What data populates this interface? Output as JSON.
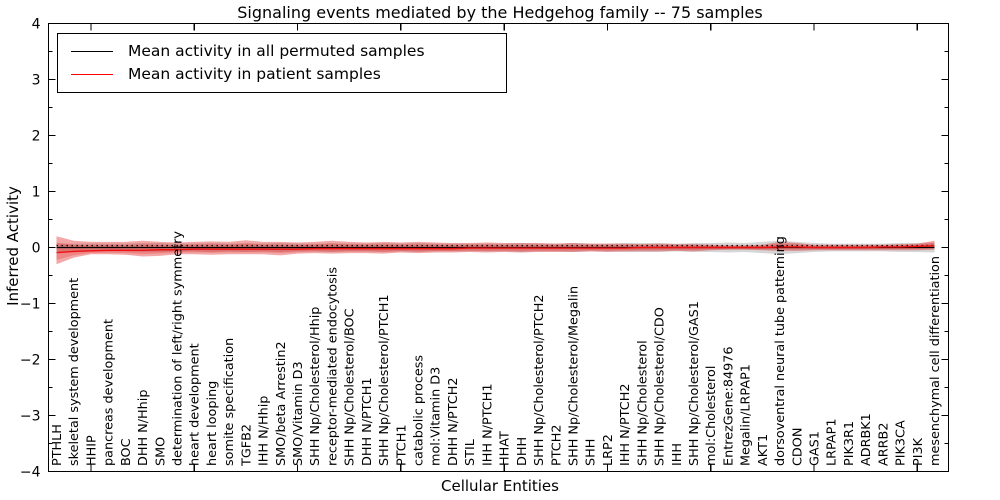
{
  "figure": {
    "title": "Signaling events mediated by the Hedgehog family -- 75 samples",
    "xlabel": "Cellular Entities",
    "ylabel": "Inferred Activity"
  },
  "legend": {
    "items": [
      {
        "label": "Mean activity in all permuted samples",
        "color": "#000000"
      },
      {
        "label": "Mean activity in patient samples",
        "color": "#ff0000"
      }
    ]
  },
  "chart_data": {
    "type": "line",
    "title": "Signaling events mediated by the Hedgehog family -- 75 samples",
    "xlabel": "Cellular Entities",
    "ylabel": "Inferred Activity",
    "ylim": [
      -4,
      4
    ],
    "grid": false,
    "legend_position": "upper left",
    "ytick_values": [
      4,
      3,
      2,
      1,
      0,
      -1,
      -2,
      -3,
      -4
    ],
    "ytick_labels": [
      "4",
      "3",
      "2",
      "1",
      "0",
      "−1",
      "−2",
      "−3",
      "−4"
    ],
    "ytick_minor_step": 0.5,
    "x_major_tick_indices": [
      2,
      8,
      14,
      20,
      26,
      32,
      38,
      44,
      50
    ],
    "entities": [
      "PTHLH",
      "skeletal system development",
      "HHIP",
      "pancreas development",
      "BOC",
      "DHH N/Hhip",
      "SMO",
      "determination of left/right symmetry",
      "heart development",
      "heart looping",
      "somite specification",
      "TGFB2",
      "IHH N/Hhip",
      "SMO/beta Arrestin2",
      "SMO/Vitamin D3",
      "SHH Np/Cholesterol/Hhip",
      "receptor-mediated endocytosis",
      "SHH Np/Cholesterol/BOC",
      "DHH N/PTCH1",
      "SHH Np/Cholesterol/PTCH1",
      "PTCH1",
      "catabolic process",
      "mol:Vitamin D3",
      "DHH N/PTCH2",
      "STIL",
      "IHH N/PTCH1",
      "HHAT",
      "DHH",
      "SHH Np/Cholesterol/PTCH2",
      "PTCH2",
      "SHH Np/Cholesterol/Megalin",
      "SHH",
      "LRP2",
      "IHH N/PTCH2",
      "SHH Np/Cholesterol",
      "SHH Np/Cholesterol/CDO",
      "IHH",
      "SHH Np/Cholesterol/GAS1",
      "mol:Cholesterol",
      "EntrezGene:84976",
      "Megalin/LRPAP1",
      "AKT1",
      "dorsoventral neural tube patterning",
      "CDON",
      "GAS1",
      "LRPAP1",
      "PIK3R1",
      "ADRBK1",
      "ARRB2",
      "PIK3CA",
      "PI3K",
      "mesenchymal cell differentiation"
    ],
    "series": [
      {
        "name": "Mean activity in all permuted samples",
        "color": "#000000",
        "values": [
          0,
          0,
          0,
          0,
          0,
          0,
          0,
          0,
          0,
          0,
          0,
          0,
          0,
          0,
          0,
          0,
          0,
          0,
          0,
          0,
          0,
          0,
          0,
          0,
          0,
          0,
          0,
          0,
          0,
          0,
          0,
          0,
          0,
          0,
          0,
          0,
          0,
          0,
          0,
          0,
          0,
          0,
          0,
          0,
          0,
          0,
          0,
          0,
          0,
          0,
          0,
          0
        ]
      },
      {
        "name": "Mean activity in patient samples",
        "color": "#ff0000",
        "values": [
          -0.09,
          -0.07,
          -0.06,
          -0.05,
          -0.05,
          -0.05,
          -0.04,
          -0.04,
          -0.03,
          -0.03,
          -0.03,
          -0.03,
          -0.03,
          -0.03,
          -0.03,
          -0.02,
          -0.02,
          -0.02,
          -0.02,
          -0.02,
          -0.02,
          -0.02,
          -0.02,
          -0.02,
          -0.01,
          -0.01,
          -0.01,
          -0.01,
          -0.01,
          -0.01,
          -0.01,
          -0.01,
          -0.01,
          -0.01,
          0,
          0,
          0,
          0,
          0,
          0,
          0,
          0,
          0.01,
          0.01,
          0,
          0,
          0,
          0,
          0.01,
          0.01,
          0.02,
          0.03
        ]
      }
    ],
    "patient_band_top": [
      0.2,
      0.12,
      0.1,
      0.1,
      0.1,
      0.12,
      0.1,
      0.09,
      0.1,
      0.11,
      0.1,
      0.13,
      0.1,
      0.1,
      0.09,
      0.1,
      0.12,
      0.1,
      0.09,
      0.1,
      0.09,
      0.1,
      0.09,
      0.08,
      0.08,
      0.09,
      0.08,
      0.08,
      0.08,
      0.07,
      0.08,
      0.07,
      0.07,
      0.07,
      0.06,
      0.07,
      0.06,
      0.06,
      0.05,
      0.04,
      0.04,
      0.05,
      0.1,
      0.08,
      0.05,
      0.05,
      0.05,
      0.05,
      0.05,
      0.06,
      0.07,
      0.12
    ],
    "patient_band_bottom": [
      -0.3,
      -0.18,
      -0.12,
      -0.12,
      -0.13,
      -0.16,
      -0.15,
      -0.12,
      -0.12,
      -0.13,
      -0.12,
      -0.12,
      -0.12,
      -0.14,
      -0.11,
      -0.1,
      -0.11,
      -0.1,
      -0.1,
      -0.11,
      -0.09,
      -0.1,
      -0.09,
      -0.09,
      -0.08,
      -0.09,
      -0.08,
      -0.09,
      -0.08,
      -0.08,
      -0.08,
      -0.07,
      -0.08,
      -0.07,
      -0.07,
      -0.07,
      -0.06,
      -0.07,
      -0.05,
      -0.04,
      -0.04,
      -0.05,
      -0.06,
      -0.06,
      -0.05,
      -0.05,
      -0.05,
      -0.05,
      -0.05,
      -0.05,
      -0.05,
      -0.04
    ],
    "permuted_band_halfwidth": [
      0.07,
      0.07,
      0.07,
      0.07,
      0.07,
      0.08,
      0.08,
      0.07,
      0.07,
      0.08,
      0.07,
      0.08,
      0.07,
      0.08,
      0.07,
      0.07,
      0.08,
      0.07,
      0.07,
      0.08,
      0.07,
      0.08,
      0.07,
      0.07,
      0.07,
      0.07,
      0.07,
      0.08,
      0.07,
      0.07,
      0.08,
      0.07,
      0.07,
      0.08,
      0.08,
      0.08,
      0.07,
      0.08,
      0.08,
      0.09,
      0.08,
      0.1,
      0.12,
      0.1,
      0.08,
      0.07,
      0.07,
      0.07,
      0.07,
      0.08,
      0.08,
      0.09
    ],
    "permuted_dotted_offset": 0.035,
    "colors": {
      "permuted_line": "#000000",
      "patient_line": "#ee1111",
      "patient_band_fill": "rgba(225,35,35,0.40)",
      "patient_band_inner_fill": "rgba(225,35,35,0.25)",
      "permuted_band_fill": "rgba(120,120,120,0.30)",
      "axes": "#000000"
    }
  }
}
